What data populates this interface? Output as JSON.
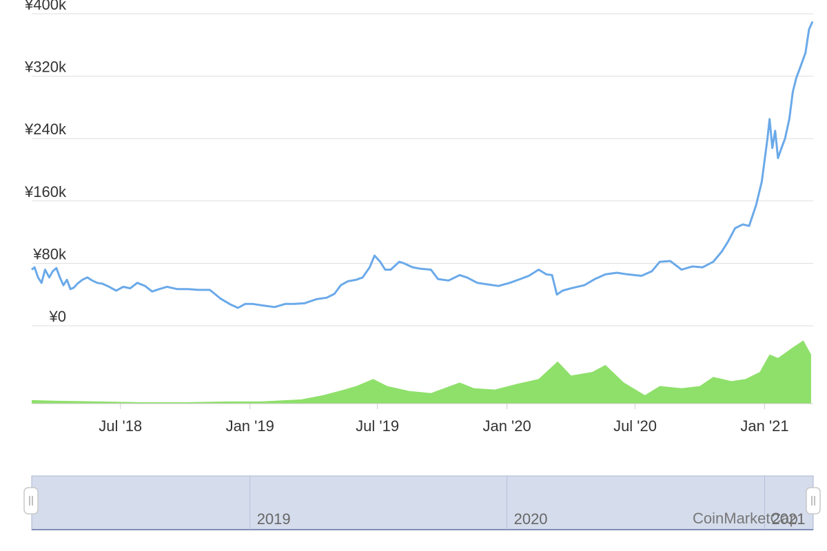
{
  "chart_data": {
    "type": "line",
    "title": "",
    "colors": {
      "price": "#6aa9e9",
      "volume": "#8ee06a",
      "grid": "#dddddd",
      "navigator_fill": "#d5dcec",
      "navigator_border": "#9aa6c8"
    },
    "price_axis": {
      "ylim": [
        0,
        400000
      ],
      "tick_values": [
        0,
        80000,
        160000,
        240000,
        320000,
        400000
      ],
      "tick_labels": [
        "¥0",
        "¥80k",
        "¥160k",
        "¥240k",
        "¥320k",
        "¥400k"
      ]
    },
    "x_axis": {
      "xlim": [
        "2018-02-25",
        "2021-03-11"
      ],
      "ticks": [
        {
          "date": "2018-07-01",
          "label": "Jul '18"
        },
        {
          "date": "2019-01-01",
          "label": "Jan '19"
        },
        {
          "date": "2019-07-01",
          "label": "Jul '19"
        },
        {
          "date": "2020-01-01",
          "label": "Jan '20"
        },
        {
          "date": "2020-07-01",
          "label": "Jul '20"
        },
        {
          "date": "2021-01-01",
          "label": "Jan '21"
        }
      ]
    },
    "series": [
      {
        "kind": "price",
        "points": [
          [
            "2018-02-25",
            72000
          ],
          [
            "2018-03-01",
            75000
          ],
          [
            "2018-03-06",
            62000
          ],
          [
            "2018-03-11",
            55000
          ],
          [
            "2018-03-16",
            72000
          ],
          [
            "2018-03-22",
            62000
          ],
          [
            "2018-03-27",
            70000
          ],
          [
            "2018-04-01",
            74000
          ],
          [
            "2018-04-06",
            62000
          ],
          [
            "2018-04-11",
            52000
          ],
          [
            "2018-04-16",
            59000
          ],
          [
            "2018-04-21",
            47000
          ],
          [
            "2018-04-26",
            49000
          ],
          [
            "2018-05-01",
            54000
          ],
          [
            "2018-05-08",
            59000
          ],
          [
            "2018-05-15",
            62000
          ],
          [
            "2018-05-22",
            58000
          ],
          [
            "2018-05-29",
            55000
          ],
          [
            "2018-06-05",
            54000
          ],
          [
            "2018-06-15",
            50000
          ],
          [
            "2018-06-25",
            45000
          ],
          [
            "2018-07-05",
            50000
          ],
          [
            "2018-07-15",
            48000
          ],
          [
            "2018-07-25",
            55000
          ],
          [
            "2018-08-05",
            51000
          ],
          [
            "2018-08-15",
            44000
          ],
          [
            "2018-08-25",
            47000
          ],
          [
            "2018-09-05",
            50000
          ],
          [
            "2018-09-20",
            47000
          ],
          [
            "2018-10-05",
            47000
          ],
          [
            "2018-10-20",
            46000
          ],
          [
            "2018-11-05",
            46000
          ],
          [
            "2018-11-20",
            35000
          ],
          [
            "2018-12-05",
            27000
          ],
          [
            "2018-12-15",
            23000
          ],
          [
            "2018-12-25",
            28000
          ],
          [
            "2019-01-05",
            28000
          ],
          [
            "2019-01-20",
            26000
          ],
          [
            "2019-02-05",
            24000
          ],
          [
            "2019-02-20",
            28000
          ],
          [
            "2019-03-05",
            28000
          ],
          [
            "2019-03-20",
            29000
          ],
          [
            "2019-04-05",
            34000
          ],
          [
            "2019-04-20",
            36000
          ],
          [
            "2019-05-01",
            41000
          ],
          [
            "2019-05-10",
            52000
          ],
          [
            "2019-05-20",
            57000
          ],
          [
            "2019-06-01",
            59000
          ],
          [
            "2019-06-10",
            62000
          ],
          [
            "2019-06-20",
            75000
          ],
          [
            "2019-06-27",
            90000
          ],
          [
            "2019-07-05",
            82000
          ],
          [
            "2019-07-12",
            72000
          ],
          [
            "2019-07-20",
            72000
          ],
          [
            "2019-08-01",
            82000
          ],
          [
            "2019-08-08",
            80000
          ],
          [
            "2019-08-20",
            75000
          ],
          [
            "2019-09-01",
            73000
          ],
          [
            "2019-09-15",
            72000
          ],
          [
            "2019-09-25",
            60000
          ],
          [
            "2019-10-10",
            58000
          ],
          [
            "2019-10-26",
            65000
          ],
          [
            "2019-11-05",
            62000
          ],
          [
            "2019-11-20",
            55000
          ],
          [
            "2019-12-05",
            53000
          ],
          [
            "2019-12-20",
            51000
          ],
          [
            "2020-01-05",
            55000
          ],
          [
            "2020-01-20",
            60000
          ],
          [
            "2020-02-01",
            64000
          ],
          [
            "2020-02-15",
            72000
          ],
          [
            "2020-02-26",
            66000
          ],
          [
            "2020-03-05",
            65000
          ],
          [
            "2020-03-12",
            40000
          ],
          [
            "2020-03-20",
            45000
          ],
          [
            "2020-04-01",
            48000
          ],
          [
            "2020-04-20",
            52000
          ],
          [
            "2020-05-05",
            60000
          ],
          [
            "2020-05-20",
            66000
          ],
          [
            "2020-06-05",
            68000
          ],
          [
            "2020-06-20",
            66000
          ],
          [
            "2020-07-10",
            64000
          ],
          [
            "2020-07-25",
            70000
          ],
          [
            "2020-08-05",
            82000
          ],
          [
            "2020-08-20",
            83000
          ],
          [
            "2020-09-05",
            72000
          ],
          [
            "2020-09-20",
            76000
          ],
          [
            "2020-10-05",
            75000
          ],
          [
            "2020-10-20",
            82000
          ],
          [
            "2020-11-01",
            95000
          ],
          [
            "2020-11-10",
            108000
          ],
          [
            "2020-11-20",
            125000
          ],
          [
            "2020-12-01",
            130000
          ],
          [
            "2020-12-10",
            128000
          ],
          [
            "2020-12-20",
            155000
          ],
          [
            "2020-12-28",
            185000
          ],
          [
            "2021-01-05",
            240000
          ],
          [
            "2021-01-08",
            265000
          ],
          [
            "2021-01-12",
            228000
          ],
          [
            "2021-01-16",
            250000
          ],
          [
            "2021-01-20",
            215000
          ],
          [
            "2021-01-25",
            228000
          ],
          [
            "2021-01-30",
            240000
          ],
          [
            "2021-02-05",
            265000
          ],
          [
            "2021-02-10",
            300000
          ],
          [
            "2021-02-15",
            318000
          ],
          [
            "2021-02-20",
            330000
          ],
          [
            "2021-02-28",
            350000
          ],
          [
            "2021-03-05",
            380000
          ],
          [
            "2021-03-10",
            390000
          ]
        ]
      },
      {
        "kind": "volume",
        "relative_to": "max",
        "points": [
          [
            "2018-02-25",
            0.05
          ],
          [
            "2018-04-01",
            0.04
          ],
          [
            "2018-06-01",
            0.03
          ],
          [
            "2018-08-01",
            0.02
          ],
          [
            "2018-10-01",
            0.02
          ],
          [
            "2018-12-01",
            0.03
          ],
          [
            "2019-01-15",
            0.03
          ],
          [
            "2019-03-15",
            0.06
          ],
          [
            "2019-04-15",
            0.12
          ],
          [
            "2019-05-15",
            0.2
          ],
          [
            "2019-06-01",
            0.25
          ],
          [
            "2019-06-25",
            0.35
          ],
          [
            "2019-07-15",
            0.25
          ],
          [
            "2019-08-15",
            0.18
          ],
          [
            "2019-09-15",
            0.15
          ],
          [
            "2019-10-26",
            0.3
          ],
          [
            "2019-11-15",
            0.22
          ],
          [
            "2019-12-15",
            0.2
          ],
          [
            "2020-01-15",
            0.28
          ],
          [
            "2020-02-15",
            0.35
          ],
          [
            "2020-03-13",
            0.6
          ],
          [
            "2020-04-01",
            0.4
          ],
          [
            "2020-05-01",
            0.45
          ],
          [
            "2020-05-20",
            0.55
          ],
          [
            "2020-06-15",
            0.3
          ],
          [
            "2020-07-15",
            0.12
          ],
          [
            "2020-08-05",
            0.25
          ],
          [
            "2020-09-05",
            0.22
          ],
          [
            "2020-10-01",
            0.25
          ],
          [
            "2020-10-20",
            0.38
          ],
          [
            "2020-11-15",
            0.32
          ],
          [
            "2020-12-05",
            0.35
          ],
          [
            "2020-12-25",
            0.45
          ],
          [
            "2021-01-08",
            0.7
          ],
          [
            "2021-01-20",
            0.65
          ],
          [
            "2021-02-10",
            0.8
          ],
          [
            "2021-02-25",
            0.9
          ],
          [
            "2021-03-08",
            0.7
          ]
        ]
      }
    ],
    "navigator": {
      "year_labels": [
        "2019",
        "2020",
        "2021"
      ]
    },
    "watermark": "CoinMarketCap"
  }
}
